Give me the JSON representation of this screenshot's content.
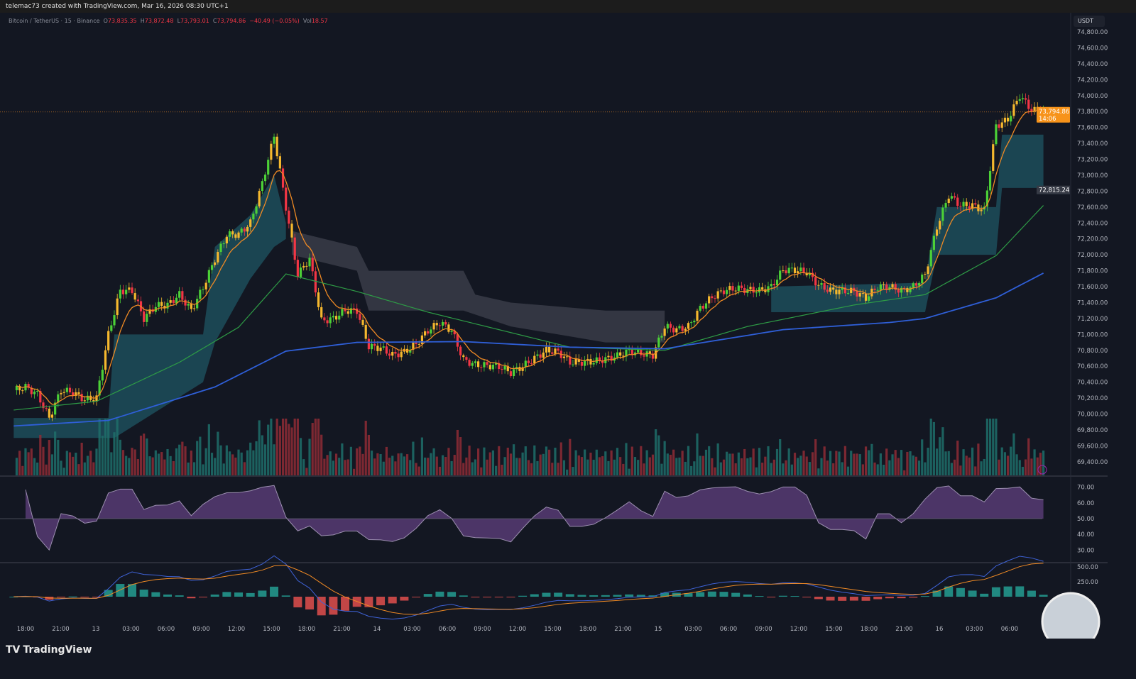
{
  "header": {
    "attribution": "telemac73 created with TradingView.com, Mar 16, 2026 08:30 UTC+1"
  },
  "legend": {
    "symbol": "Bitcoin / TetherUS · 15 · Binance",
    "open_label": "O",
    "open": "73,835.35",
    "high_label": "H",
    "high": "73,872.48",
    "low_label": "L",
    "low": "73,793.01",
    "close_label": "C",
    "close": "73,794.86",
    "change": "−40.49 (−0.05%)",
    "vol_label": "Vol",
    "vol": "18.57"
  },
  "currency": "USDT",
  "last_price": {
    "value": "73,794.86",
    "countdown": "14:06",
    "color": "#f7931a"
  },
  "marker_price": "72,815.24",
  "brand": "TradingView",
  "chart_data": {
    "type": "candlestick",
    "interval": "15",
    "start": "2026-03-12 17:00",
    "sample_step": "1h",
    "close": [
      70300,
      70340,
      70250,
      69950,
      70300,
      70270,
      70180,
      70200,
      71000,
      71550,
      71550,
      71200,
      71360,
      71370,
      71500,
      71300,
      71590,
      71950,
      72250,
      72260,
      72400,
      72900,
      73500,
      72600,
      71750,
      71950,
      71170,
      71200,
      71300,
      71300,
      70850,
      70830,
      70740,
      70780,
      70880,
      71050,
      71150,
      71050,
      70680,
      70620,
      70610,
      70600,
      70520,
      70600,
      70700,
      70800,
      70780,
      70650,
      70650,
      70660,
      70690,
      70730,
      70790,
      70760,
      70740,
      71100,
      71060,
      71100,
      71330,
      71470,
      71550,
      71580,
      71560,
      71550,
      71600,
      71810,
      71810,
      71780,
      71620,
      71550,
      71550,
      71540,
      71460,
      71600,
      71600,
      71550,
      71600,
      71750,
      72350,
      72750,
      72620,
      72620,
      72560,
      73620,
      73700,
      74000,
      73820,
      73795
    ],
    "ma_slow": [
      [
        0,
        69850
      ],
      [
        8,
        69920
      ],
      [
        17,
        70340
      ],
      [
        23,
        70790
      ],
      [
        29,
        70900
      ],
      [
        38,
        70910
      ],
      [
        47,
        70840
      ],
      [
        55,
        70820
      ],
      [
        65,
        71060
      ],
      [
        74,
        71150
      ],
      [
        77,
        71200
      ],
      [
        83,
        71460
      ],
      [
        87,
        71770
      ]
    ],
    "ma_mid": [
      [
        0,
        70050
      ],
      [
        7,
        70160
      ],
      [
        14,
        70650
      ],
      [
        19,
        71090
      ],
      [
        23,
        71760
      ],
      [
        29,
        71540
      ],
      [
        35,
        71280
      ],
      [
        47,
        70840
      ],
      [
        55,
        70800
      ],
      [
        62,
        71100
      ],
      [
        71,
        71370
      ],
      [
        77,
        71500
      ],
      [
        83,
        71990
      ],
      [
        87,
        72620
      ]
    ],
    "cloud_bull": [
      {
        "upper": [
          [
            0,
            69950
          ],
          [
            8,
            69950
          ],
          [
            8.5,
            71000
          ],
          [
            16,
            71000
          ],
          [
            17,
            72100
          ],
          [
            20,
            72500
          ],
          [
            22,
            73000
          ],
          [
            23,
            72400
          ]
        ],
        "lower": [
          [
            0,
            69700
          ],
          [
            8,
            69700
          ],
          [
            8.5,
            69700
          ],
          [
            16,
            70400
          ],
          [
            17,
            70900
          ],
          [
            20,
            71700
          ],
          [
            22,
            72100
          ],
          [
            23,
            72200
          ]
        ]
      },
      {
        "upper": [
          [
            64,
            71600
          ],
          [
            77,
            71650
          ],
          [
            78,
            72600
          ],
          [
            83,
            72600
          ],
          [
            83.5,
            73510
          ],
          [
            87,
            73510
          ]
        ],
        "lower": [
          [
            64,
            71280
          ],
          [
            77,
            71280
          ],
          [
            78,
            72000
          ],
          [
            83,
            72000
          ],
          [
            83.5,
            72840
          ],
          [
            87,
            72840
          ]
        ]
      }
    ],
    "cloud_bear": [
      {
        "upper": [
          [
            23.5,
            72300
          ],
          [
            29,
            72100
          ],
          [
            30,
            71800
          ],
          [
            38,
            71800
          ],
          [
            39,
            71500
          ],
          [
            42,
            71400
          ],
          [
            50,
            71300
          ],
          [
            55,
            71300
          ]
        ],
        "lower": [
          [
            23.5,
            72000
          ],
          [
            29,
            71800
          ],
          [
            30,
            71300
          ],
          [
            38,
            71300
          ],
          [
            42,
            71100
          ],
          [
            50,
            70900
          ],
          [
            55,
            70900
          ]
        ]
      }
    ],
    "price_ticks": [
      "74,800.00",
      "74,600.00",
      "74,400.00",
      "74,200.00",
      "74,000.00",
      "73,800.00",
      "73,600.00",
      "73,400.00",
      "73,200.00",
      "73,000.00",
      "72,800.00",
      "72,600.00",
      "72,400.00",
      "72,200.00",
      "72,000.00",
      "71,800.00",
      "71,600.00",
      "71,400.00",
      "71,200.00",
      "71,000.00",
      "70,800.00",
      "70,600.00",
      "70,400.00",
      "70,200.00",
      "70,000.00",
      "69,800.00",
      "69,600.00",
      "69,400.00"
    ],
    "rsi_ticks": [
      "70.00",
      "60.00",
      "50.00",
      "40.00",
      "30.00"
    ],
    "macd_ticks": [
      "500.00",
      "250.00"
    ],
    "time_ticks": [
      "18:00",
      "21:00",
      "13",
      "03:00",
      "06:00",
      "09:00",
      "12:00",
      "15:00",
      "18:00",
      "21:00",
      "14",
      "03:00",
      "06:00",
      "09:00",
      "12:00",
      "15:00",
      "18:00",
      "21:00",
      "15",
      "03:00",
      "06:00",
      "09:00",
      "12:00",
      "15:00",
      "18:00",
      "21:00",
      "16",
      "03:00",
      "06:00"
    ],
    "colors": {
      "up": "#4cd137",
      "up_weak": "#f5b82e",
      "down": "#f23645",
      "ma_fast": "#f08a24",
      "ma_mid": "#2e9c46",
      "ma_slow": "#2f5fd8",
      "cloud_bull": "#1d4d5b",
      "cloud_bear": "#3a3c48",
      "rsi": "#9b59b6",
      "macd": "#3f63d8",
      "signal": "#f08a24"
    }
  }
}
